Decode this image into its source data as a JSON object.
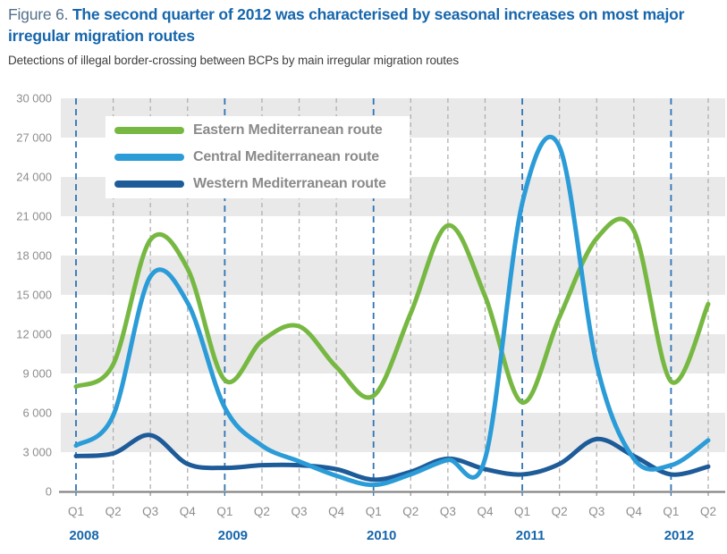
{
  "figure": {
    "label": "Figure 6.",
    "title": "The second quarter of 2012 was characterised by seasonal increases on most major irregular migration routes",
    "title_lines": [
      "The second quarter of 2012 was characterised by seasonal increases on most major",
      "irregular migration routes"
    ],
    "subtitle": "Detections of illegal border-crossing between BCPs by main irregular migration routes"
  },
  "chart_data": {
    "type": "line",
    "x_categories": [
      "Q1 2008",
      "Q2 2008",
      "Q3 2008",
      "Q4 2008",
      "Q1 2009",
      "Q2 2009",
      "Q3 2009",
      "Q4 2009",
      "Q1 2010",
      "Q2 2010",
      "Q3 2010",
      "Q4 2010",
      "Q1 2011",
      "Q2 2011",
      "Q3 2011",
      "Q4 2011",
      "Q1 2012",
      "Q2 2012"
    ],
    "x_quarter_labels": [
      "Q1",
      "Q2",
      "Q3",
      "Q4",
      "Q1",
      "Q2",
      "Q3",
      "Q4",
      "Q1",
      "Q2",
      "Q3",
      "Q4",
      "Q1",
      "Q2",
      "Q3",
      "Q4",
      "Q1",
      "Q2"
    ],
    "x_year_labels": [
      {
        "label": "2008",
        "index": 0
      },
      {
        "label": "2009",
        "index": 4
      },
      {
        "label": "2010",
        "index": 8
      },
      {
        "label": "2011",
        "index": 12
      },
      {
        "label": "2012",
        "index": 16
      }
    ],
    "series": [
      {
        "name": "Eastern Mediterranean route",
        "color": "#77B843",
        "z": 0,
        "values": [
          8000,
          9700,
          19200,
          17000,
          8500,
          11500,
          12600,
          9500,
          7300,
          13600,
          20300,
          14900,
          6800,
          13300,
          19300,
          19900,
          8400,
          14300
        ]
      },
      {
        "name": "Central Mediterranean route",
        "color": "#2B9CD7",
        "z": 2,
        "values": [
          3500,
          5800,
          16400,
          14400,
          6400,
          3500,
          2300,
          1200,
          500,
          1300,
          2400,
          2500,
          22000,
          26300,
          9700,
          2500,
          2000,
          3900
        ]
      },
      {
        "name": "Western Mediterranean route",
        "color": "#1E5B99",
        "z": 1,
        "values": [
          2700,
          2900,
          4300,
          2100,
          1800,
          2000,
          2000,
          1700,
          900,
          1500,
          2500,
          1700,
          1300,
          2100,
          4000,
          2700,
          1300,
          1900
        ]
      }
    ],
    "ylim": [
      0,
      30000
    ],
    "y_tick_step": 3000,
    "y_tick_labels": [
      "0",
      "3 000",
      "6 000",
      "9 000",
      "12 000",
      "15 000",
      "18 000",
      "21 000",
      "24 000",
      "27 000",
      "30 000"
    ],
    "grid": "vertical dashed quarter lines (blue on Q1), horizontal alternating grey bands",
    "legend_position": "top-left inside plot",
    "smoothing": "spline"
  },
  "colors": {
    "title_blue": "#1666AC",
    "figure_label": "#55718B",
    "subtitle_text": "#3E3E3E",
    "axis_text": "#8E8E8E",
    "year_text": "#1666AC",
    "legend_text": "#8A8A8A",
    "band_grey": "#E9E9E9",
    "grid_grey": "#B0B0B0",
    "grid_blue": "#2E74B5",
    "axis_line": "#858585",
    "eastern_green": "#77B843",
    "central_blue": "#2B9CD7",
    "western_darkblue": "#1E5B99"
  }
}
